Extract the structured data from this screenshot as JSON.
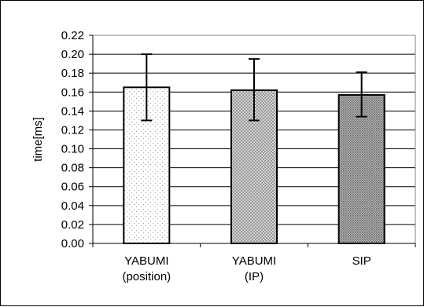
{
  "chart_data": {
    "type": "bar",
    "ylabel": "time[ms]",
    "xlabel": "",
    "ylim": [
      0,
      0.22
    ],
    "ytick_step": 0.02,
    "grid": true,
    "categories": [
      [
        "YABUMI",
        "(position)"
      ],
      [
        "YABUMI",
        "(IP)"
      ],
      [
        "SIP"
      ]
    ],
    "values": [
      0.165,
      0.162,
      0.157
    ],
    "error_low": [
      0.13,
      0.13,
      0.134
    ],
    "error_high": [
      0.2,
      0.195,
      0.181
    ],
    "patterns": [
      "sparse-dots",
      "crosshatch",
      "dense-dots"
    ]
  }
}
